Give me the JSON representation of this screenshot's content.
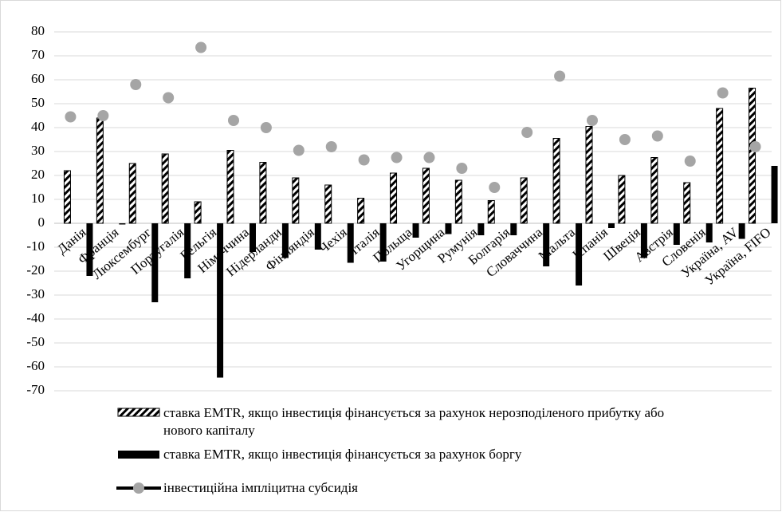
{
  "chart_data": {
    "type": "bar",
    "categories": [
      "Данія",
      "Франція",
      "Люксембург",
      "Португалія",
      "Бельгія",
      "Німеччина",
      "Нідерланди",
      "Фінляндія",
      "Чехія",
      "Італія",
      "Польща",
      "Угорщина",
      "Румунія",
      "Болгарія",
      "Словаччина",
      "Мальта",
      "Іспанія",
      "Швеція",
      "Австрія",
      "Словенія",
      "Україна, AV",
      "Україна, FIFO"
    ],
    "series": [
      {
        "name": "ставка EMTR, якщо інвестиція фінансується за рахунок нерозподіленого прибутку або нового капіталу",
        "type": "bar",
        "pattern": "hatch",
        "color": "#000000",
        "values": [
          22,
          44,
          25,
          29,
          9,
          30.5,
          25.5,
          19,
          16,
          10.5,
          21,
          23,
          18,
          9.5,
          19,
          35.5,
          40.5,
          20,
          27.5,
          17,
          48,
          56.5
        ]
      },
      {
        "name": "ставка EMTR, якщо інвестиція фінансується за рахунок боргу",
        "type": "bar",
        "color": "#000000",
        "values": [
          -22,
          -0.5,
          -33,
          -23,
          -64.5,
          -12,
          -14.5,
          -11,
          -16.5,
          -16,
          -6,
          -4.5,
          -5,
          -5,
          -18,
          -26,
          -2,
          -14.5,
          -9,
          -8,
          -6.5,
          24
        ]
      },
      {
        "name": "інвестиційна імпліцитна субсидія",
        "type": "line",
        "color": "#a5a5a5",
        "line_color": "#000000",
        "values": [
          44.5,
          45,
          58,
          52.5,
          73.5,
          43,
          40,
          30.5,
          32,
          26.5,
          27.5,
          27.5,
          23,
          15,
          38,
          61.5,
          43,
          35,
          36.5,
          26,
          54.5,
          32
        ]
      }
    ],
    "ylim": [
      -70,
      80
    ],
    "yticks": [
      -70,
      -60,
      -50,
      -40,
      -30,
      -20,
      -10,
      0,
      10,
      20,
      30,
      40,
      50,
      60,
      70,
      80
    ],
    "grid": true
  }
}
